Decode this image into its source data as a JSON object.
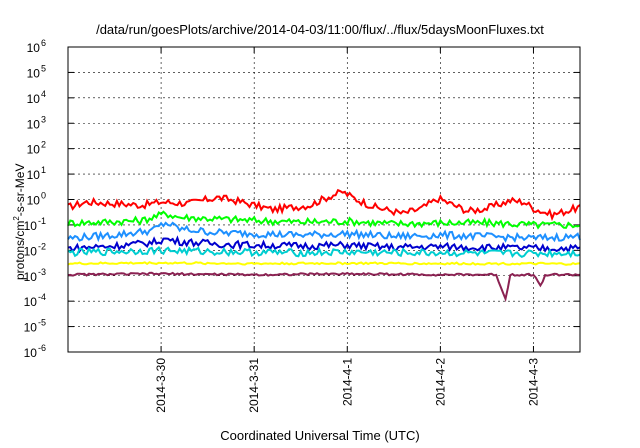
{
  "chart_data": {
    "type": "line",
    "title": "/data/run/goesPlots/archive/2014-04-03/11:00/flux/../flux/5daysMoonFluxes.txt",
    "xlabel": "Coordinated Universal Time (UTC)",
    "ylabel": "protons/cm2-s-sr-MeV",
    "ylabel_base": "protons/cm",
    "ylabel_sup": "2",
    "ylabel_rest": "-s-sr-MeV",
    "yscale": "log",
    "ylim": [
      1e-06,
      1000000.0
    ],
    "xlim": [
      0,
      5.5
    ],
    "y_ticks": [
      {
        "exp": "-6",
        "value": 1e-06
      },
      {
        "exp": "-5",
        "value": 1e-05
      },
      {
        "exp": "-4",
        "value": 0.0001
      },
      {
        "exp": "-3",
        "value": 0.001
      },
      {
        "exp": "-2",
        "value": 0.01
      },
      {
        "exp": "-1",
        "value": 0.1
      },
      {
        "exp": "0",
        "value": 1
      },
      {
        "exp": "1",
        "value": 10.0
      },
      {
        "exp": "2",
        "value": 100.0
      },
      {
        "exp": "3",
        "value": 1000.0
      },
      {
        "exp": "4",
        "value": 10000.0
      },
      {
        "exp": "5",
        "value": 100000.0
      },
      {
        "exp": "6",
        "value": 1000000.0
      }
    ],
    "y_tick_base": "10",
    "x_ticks": [
      {
        "label": "2014-3-30",
        "value": 1
      },
      {
        "label": "2014-3-31",
        "value": 2
      },
      {
        "label": "2014-4-1",
        "value": 3
      },
      {
        "label": "2014-4-2",
        "value": 4
      },
      {
        "label": "2014-4-3",
        "value": 5
      }
    ],
    "grid": true,
    "series": [
      {
        "color": "#ff0000",
        "anchors": [
          [
            0,
            0.5
          ],
          [
            0.2,
            0.8
          ],
          [
            0.5,
            0.7
          ],
          [
            0.8,
            0.6
          ],
          [
            1.0,
            0.8
          ],
          [
            1.3,
            0.7
          ],
          [
            1.6,
            1.2
          ],
          [
            1.8,
            0.9
          ],
          [
            2.0,
            0.6
          ],
          [
            2.2,
            0.4
          ],
          [
            2.6,
            0.6
          ],
          [
            2.8,
            1.3
          ],
          [
            2.95,
            2.0
          ],
          [
            3.1,
            1.0
          ],
          [
            3.3,
            0.5
          ],
          [
            3.6,
            0.28
          ],
          [
            3.8,
            0.45
          ],
          [
            3.98,
            1.1
          ],
          [
            4.1,
            0.7
          ],
          [
            4.3,
            0.35
          ],
          [
            4.5,
            0.45
          ],
          [
            4.75,
            0.9
          ],
          [
            4.9,
            0.8
          ],
          [
            5.0,
            0.45
          ],
          [
            5.2,
            0.25
          ],
          [
            5.35,
            0.35
          ],
          [
            5.5,
            0.5
          ]
        ]
      },
      {
        "color": "#00ff00",
        "anchors": [
          [
            0,
            0.12
          ],
          [
            0.4,
            0.13
          ],
          [
            0.8,
            0.15
          ],
          [
            0.95,
            0.22
          ],
          [
            1.05,
            0.28
          ],
          [
            1.2,
            0.2
          ],
          [
            1.5,
            0.18
          ],
          [
            2.0,
            0.15
          ],
          [
            2.5,
            0.13
          ],
          [
            3.0,
            0.14
          ],
          [
            3.5,
            0.11
          ],
          [
            4.0,
            0.12
          ],
          [
            4.5,
            0.12
          ],
          [
            5.0,
            0.1
          ],
          [
            5.5,
            0.1
          ]
        ]
      },
      {
        "color": "#1e90ff",
        "anchors": [
          [
            0,
            0.03
          ],
          [
            0.5,
            0.04
          ],
          [
            0.9,
            0.06
          ],
          [
            1.05,
            0.12
          ],
          [
            1.2,
            0.07
          ],
          [
            1.6,
            0.05
          ],
          [
            2.0,
            0.045
          ],
          [
            2.5,
            0.04
          ],
          [
            3.0,
            0.045
          ],
          [
            3.5,
            0.035
          ],
          [
            4.0,
            0.04
          ],
          [
            4.5,
            0.035
          ],
          [
            5.0,
            0.03
          ],
          [
            5.5,
            0.035
          ]
        ]
      },
      {
        "color": "#0000cd",
        "anchors": [
          [
            0,
            0.012
          ],
          [
            0.5,
            0.015
          ],
          [
            0.9,
            0.02
          ],
          [
            1.05,
            0.028
          ],
          [
            1.2,
            0.022
          ],
          [
            1.6,
            0.018
          ],
          [
            2.0,
            0.016
          ],
          [
            2.5,
            0.015
          ],
          [
            3.0,
            0.016
          ],
          [
            3.5,
            0.013
          ],
          [
            4.0,
            0.014
          ],
          [
            4.5,
            0.013
          ],
          [
            5.0,
            0.012
          ],
          [
            5.5,
            0.012
          ]
        ]
      },
      {
        "color": "#00ced1",
        "anchors": [
          [
            0,
            0.008
          ],
          [
            0.5,
            0.009
          ],
          [
            1.0,
            0.01
          ],
          [
            1.5,
            0.009
          ],
          [
            2.0,
            0.0085
          ],
          [
            2.5,
            0.008
          ],
          [
            3.0,
            0.0085
          ],
          [
            3.5,
            0.008
          ],
          [
            4.0,
            0.008
          ],
          [
            4.5,
            0.0075
          ],
          [
            5.0,
            0.0075
          ],
          [
            5.5,
            0.008
          ]
        ]
      },
      {
        "color": "#ffff00",
        "anchors": [
          [
            0,
            0.003
          ],
          [
            1.0,
            0.0032
          ],
          [
            2.0,
            0.003
          ],
          [
            3.0,
            0.0031
          ],
          [
            4.0,
            0.003
          ],
          [
            4.7,
            0.003
          ],
          [
            5.5,
            0.0029
          ]
        ]
      },
      {
        "color": "#8b2252",
        "anchors": [
          [
            0,
            0.0011
          ],
          [
            1.0,
            0.0012
          ],
          [
            2.0,
            0.0011
          ],
          [
            3.0,
            0.0012
          ],
          [
            4.0,
            0.0011
          ],
          [
            4.6,
            0.0011
          ],
          [
            4.7,
            0.00012
          ],
          [
            4.75,
            0.0011
          ],
          [
            5.0,
            0.0011
          ],
          [
            5.08,
            0.0004
          ],
          [
            5.13,
            0.0011
          ],
          [
            5.5,
            0.0011
          ]
        ]
      }
    ]
  }
}
